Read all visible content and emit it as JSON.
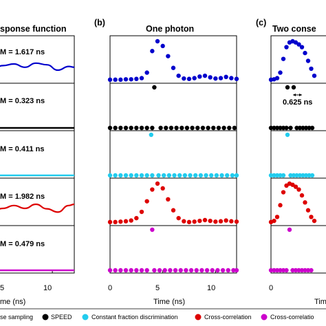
{
  "chart_data": [
    {
      "type": "line",
      "panel_label": "",
      "title": "sponse function",
      "xlabel": "me (ns)",
      "xticks": [
        "5",
        "10"
      ],
      "xlim": [
        4.6,
        12
      ],
      "stack": [
        "Pulse sampling",
        "SPEED",
        "Constant fraction discrimination",
        "Cross-correlation",
        "Cross-correlation"
      ],
      "fwhm_labels": [
        "M = 1.617 ns",
        "M = 0.323 ns",
        "M = 0.411 ns",
        "M = 1.982 ns",
        "M = 0.479 ns"
      ],
      "ripple_x": [
        4.6,
        5.5,
        6.5,
        7.5,
        8.5,
        9.5,
        10.5,
        11.5,
        12
      ],
      "traces": {
        "Pulse sampling": [
          0.0,
          0.06,
          0.1,
          0.02,
          0.12,
          0.08,
          -0.05,
          0.04,
          0.02
        ],
        "Cross-correlation": [
          0.0,
          0.05,
          0.12,
          0.05,
          0.15,
          0.04,
          -0.04,
          0.12,
          0.15
        ]
      }
    },
    {
      "type": "scatter",
      "panel_label": "(b)",
      "title": "One photon",
      "xlabel": "Time (ns)",
      "xticks": [
        "0",
        "5",
        "10"
      ],
      "xlim": [
        0,
        12
      ],
      "x": [
        0,
        0.5,
        1,
        1.5,
        2,
        2.5,
        3,
        3.5,
        4,
        4.5,
        5,
        5.5,
        6,
        6.5,
        7,
        7.5,
        8,
        8.5,
        9,
        9.5,
        10,
        10.5,
        11,
        11.5,
        12
      ],
      "series": [
        {
          "name": "Pulse sampling",
          "values": [
            0.02,
            0.02,
            0.02,
            0.03,
            0.03,
            0.04,
            0.06,
            0.2,
            0.75,
            1.0,
            0.88,
            0.62,
            0.32,
            0.12,
            0.05,
            0.04,
            0.06,
            0.1,
            0.12,
            0.08,
            0.05,
            0.06,
            0.09,
            0.06,
            0.04
          ]
        },
        {
          "name": "SPEED",
          "event_x": [
            4.2
          ],
          "band_x": [
            0,
            0.5,
            1,
            1.5,
            2,
            2.5,
            3,
            3.5,
            4,
            4.8,
            5.3,
            5.8,
            6.3,
            6.8,
            7.3,
            7.8,
            8.3,
            8.8,
            9.3,
            9.8,
            10.3,
            10.8,
            11.3,
            11.8
          ]
        },
        {
          "name": "Constant fraction discrimination",
          "event_x": [
            3.9
          ],
          "band_x": [
            0,
            0.5,
            1,
            1.5,
            2,
            2.5,
            3,
            3.5,
            4,
            4.6,
            5.1,
            5.6,
            6.1,
            6.6,
            7.1,
            7.6,
            8.1,
            8.6,
            9.1,
            9.6,
            10.1,
            10.6,
            11.1,
            11.6,
            12
          ]
        },
        {
          "name": "Cross-correlation",
          "values": [
            0.02,
            0.02,
            0.03,
            0.04,
            0.06,
            0.12,
            0.28,
            0.55,
            0.85,
            1.0,
            0.88,
            0.6,
            0.32,
            0.12,
            0.04,
            0.02,
            0.03,
            0.05,
            0.07,
            0.05,
            0.03,
            0.04,
            0.06,
            0.04,
            0.03
          ]
        },
        {
          "name": "Cross-correlation",
          "event_x": [
            4.0
          ],
          "band_x": [
            0,
            0.5,
            1,
            1.5,
            2,
            2.5,
            3,
            3.5,
            4.2,
            4.7,
            5.2,
            5.7,
            6.2,
            6.7,
            7.2,
            7.7,
            8.2,
            8.7,
            9.2,
            9.7,
            10.2,
            10.7,
            11.2,
            11.7,
            12
          ]
        }
      ]
    },
    {
      "type": "scatter",
      "panel_label": "(c)",
      "title": "Two conse",
      "xlabel": "Tim",
      "xticks": [
        "0"
      ],
      "xlim": [
        0,
        6
      ],
      "annotation": "0.625 ns",
      "x": [
        0,
        0.3,
        0.6,
        0.9,
        1.2,
        1.5,
        1.8,
        2.1,
        2.4,
        2.7,
        3.0,
        3.3,
        3.6,
        3.9,
        4.2
      ],
      "series": [
        {
          "name": "Pulse sampling",
          "values": [
            0.02,
            0.03,
            0.06,
            0.2,
            0.55,
            0.85,
            0.97,
            1.0,
            0.97,
            0.92,
            0.85,
            0.7,
            0.5,
            0.3,
            0.12
          ]
        },
        {
          "name": "SPEED",
          "event_x": [
            1.6,
            2.2
          ],
          "band_x": [
            0,
            0.3,
            0.6,
            0.9,
            1.2,
            1.5,
            1.9,
            2.5,
            2.8,
            3.1,
            3.4,
            3.7,
            4.0
          ]
        },
        {
          "name": "Constant fraction discrimination",
          "event_x": [
            1.6
          ],
          "band_x": [
            0,
            0.3,
            0.6,
            0.9,
            1.2,
            1.9,
            2.2,
            2.5,
            2.8,
            3.1,
            3.4,
            3.7,
            4.0
          ]
        },
        {
          "name": "Cross-correlation",
          "values": [
            0.02,
            0.05,
            0.15,
            0.45,
            0.78,
            0.95,
            1.0,
            0.97,
            0.92,
            0.85,
            0.7,
            0.52,
            0.32,
            0.15,
            0.05
          ]
        },
        {
          "name": "Cross-correlation",
          "event_x": [
            1.8
          ],
          "band_x": [
            0,
            0.3,
            0.6,
            0.9,
            1.2,
            1.5,
            2.1,
            2.4,
            2.7,
            3.0,
            3.3,
            3.6,
            3.9
          ]
        }
      ]
    }
  ],
  "legend": {
    "placement": "bottom",
    "items": [
      {
        "label": "se sampling",
        "color": "#0000cc"
      },
      {
        "label": "SPEED",
        "color": "#000000"
      },
      {
        "label": "Constant fraction discrimination",
        "color": "#22ccee"
      },
      {
        "label": "Cross-correlation",
        "color": "#dd0000"
      },
      {
        "label": "Cross-correlatio",
        "color": "#cc00cc"
      }
    ]
  },
  "colors": {
    "pulse_sampling": "#0000cc",
    "speed": "#000000",
    "cfd": "#22ccee",
    "cross_correlation": "#dd0000",
    "cross_correlation_2": "#cc00cc"
  }
}
